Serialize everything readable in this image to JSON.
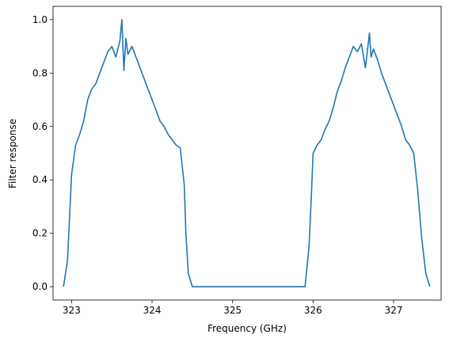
{
  "chart_data": {
    "type": "line",
    "title": "",
    "xlabel": "Frequency (GHz)",
    "ylabel": "Filter response",
    "xlim": [
      322.77,
      327.59
    ],
    "ylim": [
      -0.05,
      1.05
    ],
    "xticks": [
      323,
      324,
      325,
      326,
      327
    ],
    "yticks": [
      0.0,
      0.2,
      0.4,
      0.6,
      0.8,
      1.0
    ],
    "xtick_labels": [
      "323",
      "324",
      "325",
      "326",
      "327"
    ],
    "ytick_labels": [
      "0.0",
      "0.2",
      "0.4",
      "0.6",
      "0.8",
      "1.0"
    ],
    "grid": false,
    "legend": "none",
    "color": "#1f77b4",
    "series": [
      {
        "x": [
          322.9,
          322.95,
          323.0,
          323.05,
          323.1,
          323.15,
          323.2,
          323.25,
          323.3,
          323.35,
          323.4,
          323.45,
          323.5,
          323.55,
          323.6,
          323.625,
          323.65,
          323.675,
          323.7,
          323.75,
          323.8,
          323.85,
          323.9,
          323.95,
          324.0,
          324.05,
          324.1,
          324.15,
          324.2,
          324.25,
          324.3,
          324.35,
          324.4,
          324.42,
          324.45,
          324.5,
          324.6,
          325.0,
          325.5,
          325.9,
          325.95,
          325.98,
          326.0,
          326.05,
          326.1,
          326.15,
          326.2,
          326.25,
          326.3,
          326.35,
          326.4,
          326.45,
          326.5,
          326.55,
          326.6,
          326.65,
          326.7,
          326.72,
          326.75,
          326.8,
          326.85,
          326.9,
          326.95,
          327.0,
          327.05,
          327.1,
          327.15,
          327.2,
          327.25,
          327.3,
          327.35,
          327.4,
          327.45
        ],
        "y": [
          0.0,
          0.1,
          0.42,
          0.53,
          0.57,
          0.62,
          0.7,
          0.74,
          0.76,
          0.8,
          0.84,
          0.88,
          0.9,
          0.86,
          0.92,
          1.0,
          0.81,
          0.93,
          0.87,
          0.9,
          0.86,
          0.82,
          0.78,
          0.74,
          0.7,
          0.66,
          0.62,
          0.6,
          0.57,
          0.55,
          0.53,
          0.52,
          0.38,
          0.2,
          0.05,
          0.0,
          0.0,
          0.0,
          0.0,
          0.0,
          0.15,
          0.35,
          0.5,
          0.53,
          0.55,
          0.59,
          0.62,
          0.67,
          0.73,
          0.77,
          0.82,
          0.86,
          0.9,
          0.88,
          0.91,
          0.82,
          0.95,
          0.86,
          0.89,
          0.85,
          0.8,
          0.76,
          0.72,
          0.68,
          0.64,
          0.6,
          0.55,
          0.53,
          0.5,
          0.36,
          0.18,
          0.05,
          0.0
        ]
      }
    ]
  }
}
